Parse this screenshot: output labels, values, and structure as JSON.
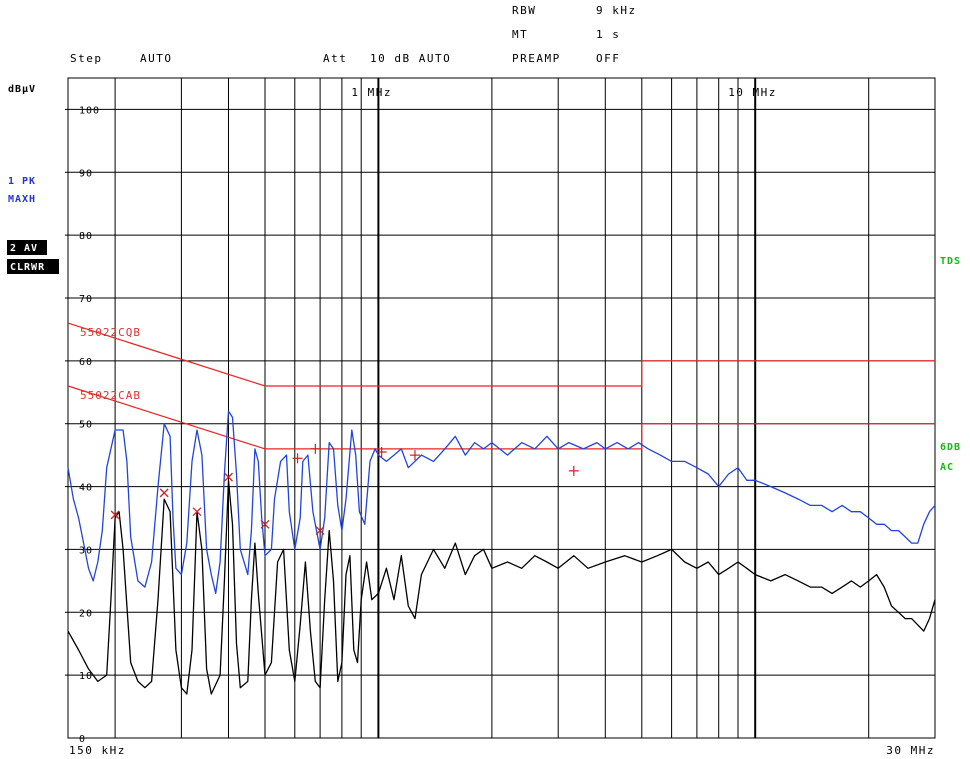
{
  "header": {
    "rbw_label": "RBW",
    "rbw_value": "9 kHz",
    "mt_label": "MT",
    "mt_value": "1 s",
    "step_label": "Step",
    "step_value": "AUTO",
    "att_label": "Att",
    "att_value": "10 dB AUTO",
    "preamp_label": "PREAMP",
    "preamp_value": "OFF"
  },
  "left_panel": {
    "unit": "dBµV",
    "trace1_line1": "1 PK",
    "trace1_line2": "MAXH",
    "trace2_line1": "2 AV",
    "trace2_line2": "CLRWR"
  },
  "right_panel": {
    "tds": "TDS",
    "sixdb": "6DB",
    "ac": "AC"
  },
  "colors": {
    "trace_pk": "#2244dd",
    "trace_av": "#000000",
    "limit": "#ee2222",
    "grid": "#000000"
  },
  "chart_data": {
    "type": "line",
    "title": "",
    "xscale": "log",
    "xlim": [
      0.15,
      30
    ],
    "ylim": [
      0,
      105
    ],
    "xunit": "MHz",
    "yunit": "dBµV",
    "x_start_label": "150 kHz",
    "x_end_label": "30 MHz",
    "x_decade_labels": [
      {
        "x": 1,
        "label": "1 MHz"
      },
      {
        "x": 10,
        "label": "10 MHz"
      }
    ],
    "y_ticks": [
      0,
      10,
      20,
      30,
      40,
      50,
      60,
      70,
      80,
      90,
      100
    ],
    "y_tick_labels": [
      "0",
      "10",
      "20",
      "30",
      "40",
      "50",
      "60",
      "70",
      "80",
      "90",
      "100"
    ],
    "limits": [
      {
        "name": "55022CQB",
        "points": [
          [
            0.15,
            66
          ],
          [
            0.5,
            56
          ],
          [
            5,
            56
          ],
          [
            5,
            60
          ],
          [
            30,
            60
          ]
        ]
      },
      {
        "name": "55022CAB",
        "points": [
          [
            0.15,
            56
          ],
          [
            0.5,
            46
          ],
          [
            5,
            46
          ],
          [
            5,
            50
          ],
          [
            30,
            50
          ]
        ]
      }
    ],
    "series": [
      {
        "name": "1 PK MAXH",
        "points": [
          [
            0.15,
            43
          ],
          [
            0.155,
            38
          ],
          [
            0.16,
            35
          ],
          [
            0.165,
            31
          ],
          [
            0.17,
            27
          ],
          [
            0.175,
            25
          ],
          [
            0.18,
            28
          ],
          [
            0.185,
            33
          ],
          [
            0.19,
            43
          ],
          [
            0.2,
            49
          ],
          [
            0.21,
            49
          ],
          [
            0.215,
            44
          ],
          [
            0.22,
            32
          ],
          [
            0.23,
            25
          ],
          [
            0.24,
            24
          ],
          [
            0.25,
            28
          ],
          [
            0.26,
            40
          ],
          [
            0.27,
            50
          ],
          [
            0.28,
            48
          ],
          [
            0.285,
            35
          ],
          [
            0.29,
            27
          ],
          [
            0.3,
            26
          ],
          [
            0.31,
            31
          ],
          [
            0.32,
            44
          ],
          [
            0.33,
            49
          ],
          [
            0.34,
            45
          ],
          [
            0.35,
            30
          ],
          [
            0.36,
            26
          ],
          [
            0.37,
            23
          ],
          [
            0.38,
            28
          ],
          [
            0.39,
            42
          ],
          [
            0.4,
            52
          ],
          [
            0.41,
            51
          ],
          [
            0.42,
            42
          ],
          [
            0.43,
            30
          ],
          [
            0.45,
            26
          ],
          [
            0.46,
            33
          ],
          [
            0.47,
            46
          ],
          [
            0.48,
            44
          ],
          [
            0.49,
            35
          ],
          [
            0.5,
            29
          ],
          [
            0.52,
            30
          ],
          [
            0.53,
            38
          ],
          [
            0.55,
            44
          ],
          [
            0.57,
            45
          ],
          [
            0.58,
            36
          ],
          [
            0.6,
            30
          ],
          [
            0.62,
            35
          ],
          [
            0.63,
            44
          ],
          [
            0.65,
            45
          ],
          [
            0.67,
            36
          ],
          [
            0.7,
            30
          ],
          [
            0.72,
            35
          ],
          [
            0.74,
            47
          ],
          [
            0.76,
            46
          ],
          [
            0.78,
            37
          ],
          [
            0.8,
            33
          ],
          [
            0.82,
            38
          ],
          [
            0.85,
            49
          ],
          [
            0.87,
            45
          ],
          [
            0.89,
            36
          ],
          [
            0.92,
            34
          ],
          [
            0.95,
            44
          ],
          [
            0.98,
            46
          ],
          [
            1,
            45
          ],
          [
            1.05,
            44
          ],
          [
            1.1,
            45
          ],
          [
            1.15,
            46
          ],
          [
            1.2,
            43
          ],
          [
            1.3,
            45
          ],
          [
            1.4,
            44
          ],
          [
            1.5,
            46
          ],
          [
            1.6,
            48
          ],
          [
            1.7,
            45
          ],
          [
            1.8,
            47
          ],
          [
            1.9,
            46
          ],
          [
            2,
            47
          ],
          [
            2.2,
            45
          ],
          [
            2.4,
            47
          ],
          [
            2.6,
            46
          ],
          [
            2.8,
            48
          ],
          [
            3,
            46
          ],
          [
            3.2,
            47
          ],
          [
            3.5,
            46
          ],
          [
            3.8,
            47
          ],
          [
            4,
            46
          ],
          [
            4.3,
            47
          ],
          [
            4.6,
            46
          ],
          [
            4.9,
            47
          ],
          [
            5.2,
            46
          ],
          [
            5.6,
            45
          ],
          [
            6,
            44
          ],
          [
            6.5,
            44
          ],
          [
            7,
            43
          ],
          [
            7.5,
            42
          ],
          [
            8,
            40
          ],
          [
            8.5,
            42
          ],
          [
            9,
            43
          ],
          [
            9.5,
            41
          ],
          [
            10,
            41
          ],
          [
            11,
            40
          ],
          [
            12,
            39
          ],
          [
            13,
            38
          ],
          [
            14,
            37
          ],
          [
            15,
            37
          ],
          [
            16,
            36
          ],
          [
            17,
            37
          ],
          [
            18,
            36
          ],
          [
            19,
            36
          ],
          [
            20,
            35
          ],
          [
            21,
            34
          ],
          [
            22,
            34
          ],
          [
            23,
            33
          ],
          [
            24,
            33
          ],
          [
            25,
            32
          ],
          [
            26,
            31
          ],
          [
            27,
            31
          ],
          [
            28,
            34
          ],
          [
            29,
            36
          ],
          [
            30,
            37
          ]
        ]
      },
      {
        "name": "2 AV CLRWR",
        "points": [
          [
            0.15,
            17
          ],
          [
            0.16,
            14
          ],
          [
            0.17,
            11
          ],
          [
            0.18,
            9
          ],
          [
            0.19,
            10
          ],
          [
            0.195,
            22
          ],
          [
            0.2,
            35
          ],
          [
            0.205,
            36
          ],
          [
            0.21,
            30
          ],
          [
            0.22,
            12
          ],
          [
            0.23,
            9
          ],
          [
            0.24,
            8
          ],
          [
            0.25,
            9
          ],
          [
            0.26,
            22
          ],
          [
            0.27,
            38
          ],
          [
            0.28,
            36
          ],
          [
            0.29,
            14
          ],
          [
            0.3,
            8
          ],
          [
            0.31,
            7
          ],
          [
            0.32,
            14
          ],
          [
            0.33,
            36
          ],
          [
            0.34,
            30
          ],
          [
            0.35,
            11
          ],
          [
            0.36,
            7
          ],
          [
            0.38,
            10
          ],
          [
            0.39,
            25
          ],
          [
            0.4,
            41
          ],
          [
            0.41,
            34
          ],
          [
            0.42,
            15
          ],
          [
            0.43,
            8
          ],
          [
            0.45,
            9
          ],
          [
            0.46,
            22
          ],
          [
            0.47,
            31
          ],
          [
            0.48,
            23
          ],
          [
            0.5,
            10
          ],
          [
            0.52,
            12
          ],
          [
            0.54,
            28
          ],
          [
            0.56,
            30
          ],
          [
            0.58,
            14
          ],
          [
            0.6,
            9
          ],
          [
            0.62,
            18
          ],
          [
            0.64,
            28
          ],
          [
            0.66,
            17
          ],
          [
            0.68,
            9
          ],
          [
            0.7,
            8
          ],
          [
            0.72,
            22
          ],
          [
            0.74,
            33
          ],
          [
            0.76,
            25
          ],
          [
            0.78,
            9
          ],
          [
            0.8,
            12
          ],
          [
            0.82,
            26
          ],
          [
            0.84,
            29
          ],
          [
            0.86,
            14
          ],
          [
            0.88,
            12
          ],
          [
            0.9,
            22
          ],
          [
            0.93,
            28
          ],
          [
            0.96,
            22
          ],
          [
            1,
            23
          ],
          [
            1.05,
            27
          ],
          [
            1.1,
            22
          ],
          [
            1.15,
            29
          ],
          [
            1.2,
            21
          ],
          [
            1.25,
            19
          ],
          [
            1.3,
            26
          ],
          [
            1.4,
            30
          ],
          [
            1.5,
            27
          ],
          [
            1.6,
            31
          ],
          [
            1.7,
            26
          ],
          [
            1.8,
            29
          ],
          [
            1.9,
            30
          ],
          [
            2,
            27
          ],
          [
            2.2,
            28
          ],
          [
            2.4,
            27
          ],
          [
            2.6,
            29
          ],
          [
            2.8,
            28
          ],
          [
            3,
            27
          ],
          [
            3.3,
            29
          ],
          [
            3.6,
            27
          ],
          [
            4,
            28
          ],
          [
            4.5,
            29
          ],
          [
            5,
            28
          ],
          [
            5.5,
            29
          ],
          [
            6,
            30
          ],
          [
            6.5,
            28
          ],
          [
            7,
            27
          ],
          [
            7.5,
            28
          ],
          [
            8,
            26
          ],
          [
            8.5,
            27
          ],
          [
            9,
            28
          ],
          [
            9.5,
            27
          ],
          [
            10,
            26
          ],
          [
            11,
            25
          ],
          [
            12,
            26
          ],
          [
            13,
            25
          ],
          [
            14,
            24
          ],
          [
            15,
            24
          ],
          [
            16,
            23
          ],
          [
            17,
            24
          ],
          [
            18,
            25
          ],
          [
            19,
            24
          ],
          [
            20,
            25
          ],
          [
            21,
            26
          ],
          [
            22,
            24
          ],
          [
            23,
            21
          ],
          [
            24,
            20
          ],
          [
            25,
            19
          ],
          [
            26,
            19
          ],
          [
            27,
            18
          ],
          [
            28,
            17
          ],
          [
            29,
            19
          ],
          [
            30,
            22
          ]
        ]
      }
    ],
    "qp_markers": [
      [
        0.2,
        35.5
      ],
      [
        0.27,
        39
      ],
      [
        0.33,
        36
      ],
      [
        0.4,
        41.5
      ],
      [
        0.5,
        34
      ],
      [
        0.7,
        33
      ],
      [
        0.61,
        44.5
      ],
      [
        0.68,
        46
      ],
      [
        1.02,
        45.5
      ],
      [
        1.25,
        45
      ],
      [
        3.3,
        42.5
      ]
    ],
    "av_markers": [
      [
        0.2,
        35.5
      ],
      [
        0.27,
        39
      ],
      [
        0.33,
        36
      ],
      [
        0.4,
        41.5
      ],
      [
        0.5,
        34
      ],
      [
        0.7,
        33
      ]
    ]
  }
}
